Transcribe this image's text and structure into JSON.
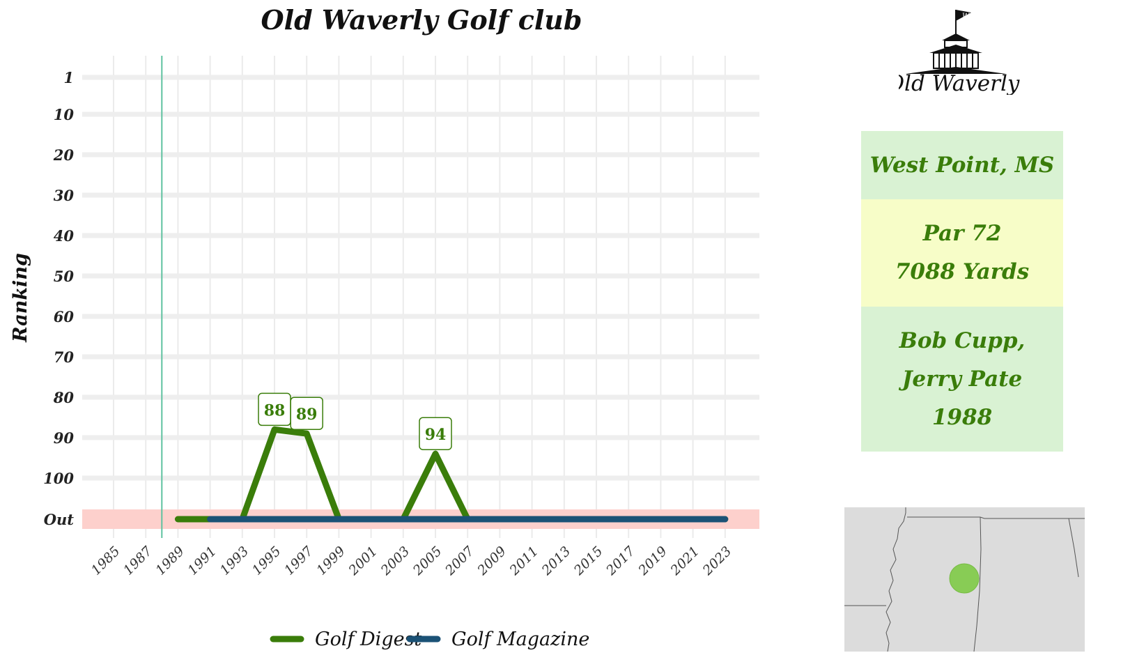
{
  "chart_data": {
    "type": "line",
    "title": "Old Waverly Golf club",
    "ylabel": "Ranking",
    "xlabel": "",
    "x_ticks": [
      1985,
      1987,
      1989,
      1991,
      1993,
      1995,
      1997,
      1999,
      2001,
      2003,
      2005,
      2007,
      2009,
      2011,
      2013,
      2015,
      2017,
      2019,
      2021,
      2023
    ],
    "xlim": [
      1985,
      2023
    ],
    "y_tick_values": [
      1,
      10,
      20,
      30,
      40,
      50,
      60,
      70,
      80,
      90,
      100,
      110
    ],
    "y_tick_labels": [
      "1",
      "10",
      "20",
      "30",
      "40",
      "50",
      "60",
      "70",
      "80",
      "90",
      "100",
      "Out"
    ],
    "y_out_value": 110,
    "y_reversed": true,
    "vertical_marker_x": 1988,
    "series": [
      {
        "name": "Golf Digest",
        "color": "#3a7d0a",
        "points": [
          {
            "x": 1989,
            "y": 110
          },
          {
            "x": 1991,
            "y": 110
          },
          {
            "x": 1993,
            "y": 110
          },
          {
            "x": 1995,
            "y": 88
          },
          {
            "x": 1997,
            "y": 89
          },
          {
            "x": 1999,
            "y": 110
          },
          {
            "x": 2001,
            "y": 110
          },
          {
            "x": 2003,
            "y": 110
          },
          {
            "x": 2005,
            "y": 94
          },
          {
            "x": 2007,
            "y": 110
          },
          {
            "x": 2009,
            "y": 110
          },
          {
            "x": 2011,
            "y": 110
          },
          {
            "x": 2013,
            "y": 110
          },
          {
            "x": 2015,
            "y": 110
          },
          {
            "x": 2017,
            "y": 110
          },
          {
            "x": 2019,
            "y": 110
          },
          {
            "x": 2021,
            "y": 110
          },
          {
            "x": 2023,
            "y": 110
          }
        ]
      },
      {
        "name": "Golf Magazine",
        "color": "#1b5276",
        "points": [
          {
            "x": 1991,
            "y": 110
          },
          {
            "x": 1993,
            "y": 110
          },
          {
            "x": 1995,
            "y": 110
          },
          {
            "x": 1997,
            "y": 110
          },
          {
            "x": 1999,
            "y": 110
          },
          {
            "x": 2001,
            "y": 110
          },
          {
            "x": 2003,
            "y": 110
          },
          {
            "x": 2005,
            "y": 110
          },
          {
            "x": 2007,
            "y": 110
          },
          {
            "x": 2009,
            "y": 110
          },
          {
            "x": 2011,
            "y": 110
          },
          {
            "x": 2013,
            "y": 110
          },
          {
            "x": 2015,
            "y": 110
          },
          {
            "x": 2017,
            "y": 110
          },
          {
            "x": 2019,
            "y": 110
          },
          {
            "x": 2021,
            "y": 110
          },
          {
            "x": 2023,
            "y": 110
          }
        ]
      }
    ],
    "annotations": [
      {
        "x": 1995,
        "y": 88,
        "label": "88"
      },
      {
        "x": 1997,
        "y": 89,
        "label": "89"
      },
      {
        "x": 2005,
        "y": 94,
        "label": "94"
      }
    ],
    "grid": true,
    "legend_position": "bottom"
  },
  "info": {
    "location": "West Point, MS",
    "par": "Par 72",
    "yards": "7088 Yards",
    "architect_1": "Bob Cupp,",
    "architect_2": "Jerry Pate",
    "year": "1988"
  },
  "logo": {
    "text": "Old Waverly",
    "flag_letter": "W"
  },
  "colors": {
    "out_band": "#fdd0cc",
    "marker_line": "#5fc2a0",
    "info_green": "#d9f2d3",
    "info_yellow": "#f7fdc8",
    "text_green": "#3a7d0a",
    "map_dot": "#88cc55"
  }
}
